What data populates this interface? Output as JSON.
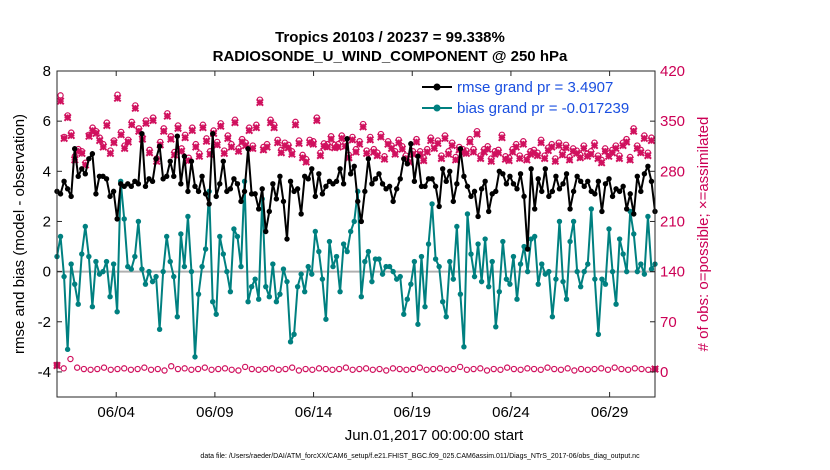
{
  "colors": {
    "rmse": "#000000",
    "bias": "#008080",
    "obs": "#d0115e",
    "zero_line": "#b0b0b0",
    "legend_text": "#1a4fe0"
  },
  "chart_data": {
    "type": "line",
    "title_line1": "Tropics 20103 / 20237 = 99.338%",
    "title_line2": "RADIOSONDE_U_WIND_COMPONENT @ 250 hPa",
    "xlabel": "Jun.01,2017 00:00:00 start",
    "ylabel_left": "rmse and bias (model - observation)",
    "ylabel_right": "# of obs: o=possible; ×=assimilated",
    "x_range_days": [
      1.0,
      31.3
    ],
    "ylim_left": [
      -5,
      8
    ],
    "ylim_right": [
      -35,
      420
    ],
    "yticks_left": [
      -4,
      -2,
      0,
      2,
      4,
      6,
      8
    ],
    "yticks_right": [
      0,
      70,
      140,
      210,
      280,
      350,
      420
    ],
    "xticks": [
      {
        "day": 4,
        "label": "06/04"
      },
      {
        "day": 9,
        "label": "06/09"
      },
      {
        "day": 14,
        "label": "06/14"
      },
      {
        "day": 19,
        "label": "06/19"
      },
      {
        "day": 24,
        "label": "06/24"
      },
      {
        "day": 29,
        "label": "06/29"
      }
    ],
    "legend": [
      {
        "name": "rmse",
        "label": "rmse grand pr = 3.4907"
      },
      {
        "name": "bias",
        "label": "bias grand pr = -0.017239"
      }
    ],
    "legend_placement": "top-right",
    "series": [
      {
        "name": "rmse",
        "values": [
          3.2,
          3.1,
          3.6,
          3.3,
          3.0,
          4.9,
          3.8,
          4.1,
          3.9,
          4.5,
          4.7,
          3.1,
          3.8,
          3.8,
          3.7,
          3.0,
          3.2,
          2.1,
          3.5,
          3.4,
          3.5,
          3.4,
          3.6,
          3.5,
          5.5,
          3.4,
          3.7,
          3.6,
          4.5,
          5.0,
          3.7,
          3.8,
          4.4,
          3.8,
          5.4,
          3.5,
          4.6,
          3.2,
          4.4,
          3.4,
          3.2,
          3.8,
          3.1,
          2.7,
          5.5,
          3.0,
          3.5,
          4.4,
          3.2,
          3.3,
          3.7,
          3.5,
          2.8,
          3.2,
          4.9,
          3.1,
          3.1,
          2.5,
          3.3,
          1.6,
          2.4,
          3.5,
          2.9,
          3.8,
          2.8,
          1.3,
          3.6,
          3.2,
          3.3,
          2.3,
          3.8,
          3.7,
          4.1,
          3.0,
          3.9,
          3.1,
          3.4,
          3.6,
          3.5,
          3.6,
          4.1,
          3.5,
          5.3,
          3.9,
          4.2,
          2.8,
          2.0,
          3.2,
          4.5,
          3.5,
          3.7,
          3.9,
          3.5,
          3.3,
          3.4,
          2.8,
          3.3,
          3.7,
          4.5,
          4.3,
          5.1,
          3.6,
          4.6,
          3.4,
          3.4,
          3.7,
          3.7,
          3.4,
          2.6,
          4.1,
          3.6,
          4.0,
          2.8,
          3.5,
          4.9,
          3.8,
          3.4,
          3.0,
          3.2,
          2.2,
          3.3,
          3.6,
          2.4,
          3.1,
          3.2,
          4.0,
          3.9,
          3.5,
          3.8,
          3.5,
          3.3,
          3.9,
          3.0,
          0.9,
          4.1,
          2.5,
          3.7,
          3.2,
          4.1,
          3.0,
          3.2,
          3.8,
          3.3,
          3.5,
          3.9,
          2.5,
          3.2,
          3.8,
          3.6,
          3.4,
          3.6,
          3.2,
          3.1,
          3.6,
          2.4,
          3.5,
          3.7,
          3.0,
          3.3,
          3.2,
          3.4,
          2.5,
          3.1,
          2.3,
          3.8,
          3.2,
          3.9,
          4.2,
          3.6,
          2.4
        ]
      },
      {
        "name": "bias",
        "values": [
          0.6,
          1.4,
          -0.2,
          -3.1,
          0.3,
          -0.5,
          -1.3,
          0.7,
          1.8,
          0.6,
          -1.4,
          0.4,
          -0.1,
          0.0,
          0.4,
          -1.0,
          0.3,
          -1.6,
          3.6,
          2.1,
          0.2,
          0.1,
          0.6,
          2.0,
          0.1,
          -0.5,
          0.0,
          -0.4,
          -0.2,
          -2.3,
          0.0,
          1.4,
          0.4,
          -0.2,
          -1.8,
          1.5,
          0.2,
          2.2,
          0.0,
          -3.4,
          -0.9,
          0.2,
          0.9,
          3.2,
          -1.2,
          -1.7,
          1.4,
          0.7,
          0.0,
          -0.8,
          1.7,
          1.4,
          0.2,
          3.6,
          -1.2,
          -0.6,
          -0.3,
          -1.1,
          2.9,
          -0.6,
          -1.0,
          0.3,
          -1.2,
          -0.9,
          0.1,
          -0.4,
          -2.8,
          -2.5,
          -0.6,
          -0.1,
          -0.8,
          0.2,
          -0.1,
          1.6,
          0.8,
          -0.3,
          -1.9,
          1.2,
          0.2,
          0.6,
          -0.8,
          1.1,
          0.8,
          1.6,
          2.0,
          3.2,
          -1.0,
          0.4,
          0.8,
          -0.4,
          0.5,
          0.5,
          -0.1,
          0.2,
          0.2,
          0.0,
          -0.3,
          -0.2,
          -1.7,
          -1.1,
          -0.5,
          0.4,
          -2.1,
          0.6,
          -1.4,
          1.1,
          2.7,
          0.5,
          0.2,
          -1.2,
          -1.8,
          0.4,
          -0.3,
          1.8,
          -0.9,
          -3.0,
          2.3,
          0.7,
          -0.2,
          1.1,
          -0.4,
          1.3,
          -0.6,
          0.4,
          -2.2,
          -0.8,
          1.2,
          -0.3,
          -0.5,
          0.6,
          -1.1,
          0.3,
          1.0,
          0.0,
          1.3,
          1.4,
          -0.5,
          0.3,
          -0.1,
          0.0,
          -1.8,
          -0.3,
          2.0,
          -0.4,
          -1.1,
          1.2,
          2.0,
          0.0,
          -0.6,
          0.0,
          0.3,
          2.5,
          -0.3,
          -2.5,
          -0.3,
          -0.5,
          1.7,
          0.0,
          -1.3,
          1.3,
          0.7,
          0.0,
          2.4,
          1.5,
          0.0,
          0.3,
          -0.1,
          2.2,
          0.1,
          0.3
        ]
      },
      {
        "name": "obs_possible",
        "axis": "right",
        "values": [
          9,
          386,
          328,
          358,
          334,
          301,
          311,
          308,
          292,
          331,
          341,
          336,
          327,
          318,
          348,
          309,
          323,
          387,
          335,
          316,
          324,
          349,
          372,
          340,
          328,
          351,
          310,
          355,
          298,
          321,
          340,
          361,
          329,
          307,
          344,
          312,
          331,
          299,
          341,
          318,
          305,
          345,
          326,
          308,
          337,
          321,
          347,
          309,
          330,
          318,
          352,
          312,
          325,
          320,
          341,
          316,
          345,
          380,
          314,
          318,
          352,
          345,
          324,
          310,
          320,
          317,
          308,
          349,
          323,
          303,
          297,
          324,
          322,
          355,
          306,
          319,
          318,
          329,
          317,
          318,
          330,
          319,
          303,
          328,
          311,
          322,
          346,
          309,
          328,
          311,
          306,
          332,
          301,
          322,
          316,
          308,
          324,
          315,
          302,
          297,
          308,
          325,
          308,
          299,
          311,
          327,
          316,
          323,
          302,
          330,
          308,
          320,
          300,
          314,
          311,
          309,
          325,
          311,
          336,
          302,
          311,
          315,
          298,
          308,
          310,
          331,
          301,
          299,
          311,
          318,
          302,
          322,
          300,
          308,
          310,
          306,
          324,
          302,
          313,
          318,
          298,
          320,
          307,
          317,
          300,
          312,
          309,
          303,
          316,
          305,
          308,
          320,
          302,
          296,
          312,
          305,
          310,
          316,
          302,
          320,
          325,
          300,
          340,
          316,
          310,
          330,
          306,
          327,
          4
        ]
      },
      {
        "name": "obs_assimilated",
        "axis": "right",
        "values": [
          9,
          378,
          326,
          355,
          330,
          296,
          308,
          305,
          289,
          329,
          337,
          333,
          323,
          314,
          344,
          305,
          320,
          382,
          331,
          312,
          321,
          345,
          368,
          336,
          325,
          347,
          306,
          351,
          294,
          317,
          336,
          357,
          325,
          303,
          340,
          308,
          327,
          295,
          337,
          314,
          301,
          341,
          322,
          304,
          333,
          317,
          343,
          305,
          326,
          314,
          348,
          308,
          321,
          316,
          337,
          312,
          341,
          376,
          310,
          314,
          348,
          341,
          320,
          306,
          316,
          313,
          304,
          345,
          319,
          299,
          293,
          320,
          318,
          351,
          302,
          315,
          314,
          325,
          313,
          314,
          326,
          315,
          299,
          324,
          307,
          318,
          342,
          305,
          324,
          307,
          302,
          328,
          297,
          318,
          312,
          304,
          320,
          311,
          298,
          293,
          304,
          321,
          304,
          295,
          307,
          323,
          312,
          319,
          298,
          326,
          304,
          316,
          296,
          310,
          307,
          305,
          321,
          307,
          332,
          298,
          307,
          311,
          294,
          304,
          306,
          327,
          297,
          295,
          307,
          314,
          298,
          318,
          296,
          304,
          306,
          302,
          320,
          298,
          309,
          314,
          294,
          316,
          303,
          313,
          296,
          308,
          305,
          299,
          312,
          301,
          304,
          316,
          298,
          292,
          308,
          301,
          306,
          312,
          298,
          316,
          321,
          296,
          336,
          312,
          306,
          326,
          302,
          323,
          4
        ]
      },
      {
        "name": "obs_possible_low",
        "axis": "right",
        "values": [
          10,
          5,
          18,
          6,
          4,
          3,
          4,
          6,
          3,
          4,
          5,
          3,
          4,
          6,
          3,
          4,
          2,
          8,
          4,
          5,
          3,
          4,
          6,
          3,
          4,
          5,
          3,
          2,
          7,
          4,
          3,
          4,
          5,
          3,
          4,
          6,
          2,
          4,
          3,
          5,
          4,
          3,
          4,
          6,
          3,
          4,
          5,
          3,
          4,
          2,
          5,
          4,
          3,
          4,
          6,
          3,
          4,
          5,
          3,
          4,
          7,
          3,
          4,
          5,
          2,
          4,
          3,
          6,
          4,
          3,
          5,
          4,
          3,
          6,
          4,
          3,
          5,
          2,
          4,
          3,
          4,
          5,
          3,
          6,
          4,
          3,
          5,
          4,
          3,
          4
        ]
      }
    ],
    "footnote": "data file: /Users/raeder/DAI/ATM_forcXX/CAM6_setup/f.e21.FHIST_BGC.f09_025.CAM6assim.011/Diags_NTrS_2017-06/obs_diag_output.nc"
  }
}
